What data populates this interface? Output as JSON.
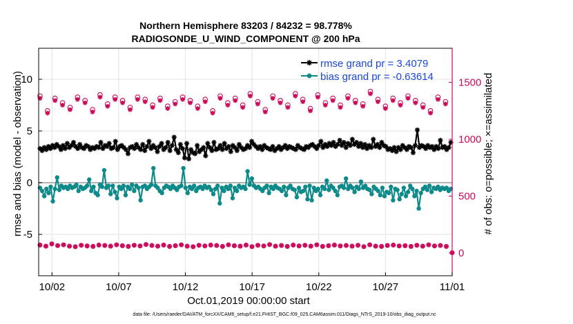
{
  "chart_data": {
    "type": "line",
    "title": "Northern Hemisphere 83203 / 84232 = 98.778%",
    "subtitle": "RADIOSONDE_U_WIND_COMPONENT @ 200 hPa",
    "xlabel": "Oct.01,2019 00:00:00 start",
    "ylabel_left": "rmse and bias (model - observation)",
    "ylabel_right": "# of obs: o=possible; ×=assimilated",
    "footnote": "data file: /Users/raeder/DAI/ATM_forcXX/CAM6_setup/f.e21.FHIST_BGC.f09_025.CAM6assim.011/Diags_NTrS_2019-10/obs_diag_output.nc",
    "x_range_days": [
      0,
      31
    ],
    "ylim_left": [
      -9,
      13
    ],
    "ylim_right": [
      -200,
      1800
    ],
    "x_ticks": [
      {
        "label": "10/02",
        "day": 1
      },
      {
        "label": "10/07",
        "day": 6
      },
      {
        "label": "10/12",
        "day": 11
      },
      {
        "label": "10/17",
        "day": 16
      },
      {
        "label": "10/22",
        "day": 21
      },
      {
        "label": "10/27",
        "day": 26
      },
      {
        "label": "11/01",
        "day": 31
      }
    ],
    "y_ticks_left": [
      {
        "label": "10",
        "value": 10
      },
      {
        "label": "5",
        "value": 5
      },
      {
        "label": "0",
        "value": 0
      },
      {
        "label": "-5",
        "value": -5
      }
    ],
    "y_ticks_right": [
      {
        "label": "1500",
        "value": 1500
      },
      {
        "label": "1000",
        "value": 1000
      },
      {
        "label": "500",
        "value": 500
      },
      {
        "label": "0",
        "value": 0
      }
    ],
    "legend": [
      {
        "label": "rmse grand pr = 3.4079",
        "color": "#000000",
        "series": "rmse"
      },
      {
        "label": "bias grand pr = -0.63614",
        "color": "#0f8a8a",
        "series": "bias"
      }
    ],
    "colors": {
      "rmse": "#000000",
      "bias": "#0f8a8a",
      "obs": "#cc0a5a",
      "legend_text": "#1a47d8",
      "zero_line": "#b4b4b4"
    },
    "series": [
      {
        "name": "rmse",
        "axis": "left",
        "values": [
          3.3,
          3.1,
          3.4,
          3.2,
          3.5,
          3.3,
          3.6,
          3.4,
          3.7,
          3.5,
          3.2,
          3.6,
          3.3,
          3.8,
          3.4,
          3.6,
          3.9,
          3.5,
          3.3,
          3.7,
          3.4,
          3.3,
          3.6,
          3.5,
          3.2,
          3.4,
          3.3,
          3.5,
          3.4,
          3.9,
          3.3,
          3.6,
          3.5,
          3.8,
          3.3,
          3.4,
          4.0,
          3.2,
          3.5,
          3.6,
          3.4,
          3.2,
          2.8,
          3.4,
          3.5,
          3.3,
          3.7,
          3.4,
          3.2,
          3.7,
          3.1,
          3.5,
          4.0,
          3.3,
          3.6,
          3.4,
          3.0,
          3.5,
          3.8,
          3.2,
          3.4,
          3.9,
          3.1,
          3.6,
          4.4,
          3.2,
          2.9,
          3.7,
          3.3,
          2.4,
          3.8,
          2.3,
          3.2,
          2.9,
          2.8,
          3.6,
          3.0,
          3.2,
          3.4,
          2.6,
          3.8,
          3.4,
          3.1,
          3.9,
          3.2,
          3.3,
          3.6,
          3.2,
          3.8,
          3.3,
          3.5,
          3.0,
          3.6,
          3.4,
          3.1,
          3.7,
          3.4,
          3.2,
          3.3,
          3.6,
          3.4,
          4.0,
          3.7,
          3.5,
          3.3,
          3.5,
          3.2,
          3.6,
          3.4,
          3.3,
          3.2,
          3.5,
          3.1,
          3.3,
          3.5,
          3.2,
          3.4,
          3.6,
          3.3,
          3.5,
          3.4,
          3.3,
          3.2,
          3.6,
          3.4,
          3.3,
          3.2,
          3.5,
          3.4,
          3.6,
          3.7,
          3.5,
          3.3,
          3.6,
          4.0,
          3.4,
          3.7,
          3.5,
          3.8,
          3.6,
          3.9,
          3.5,
          3.7,
          4.1,
          3.6,
          3.9,
          3.4,
          3.8,
          3.6,
          4.2,
          3.7,
          3.9,
          3.5,
          3.8,
          3.4,
          3.7,
          3.3,
          3.6,
          3.4,
          4.2,
          3.5,
          3.7,
          3.4,
          3.9,
          3.6,
          3.5,
          3.2,
          3.3,
          3.1,
          3.4,
          3.0,
          3.4,
          3.2,
          3.6,
          3.4,
          3.2,
          3.5,
          3.4,
          2.9,
          3.6,
          5.1,
          3.4,
          3.6,
          3.5,
          3.3,
          3.6,
          3.4,
          3.5,
          3.2,
          3.5,
          3.3,
          4.1,
          3.4,
          3.5,
          3.2,
          3.4,
          3.9
        ]
      },
      {
        "name": "bias",
        "axis": "left",
        "values": [
          -0.5,
          -0.8,
          -1.3,
          -0.6,
          -1.0,
          -0.4,
          -1.8,
          -0.6,
          0.5,
          -0.7,
          -0.3,
          -0.5,
          -0.4,
          -0.6,
          -0.3,
          -0.5,
          -0.4,
          -0.2,
          -0.8,
          -0.4,
          -0.6,
          -0.5,
          -0.3,
          0.3,
          -0.8,
          -0.4,
          -1.0,
          -1.2,
          -0.2,
          -0.4,
          1.2,
          -0.5,
          -0.3,
          -1.1,
          -0.3,
          -0.9,
          -1.5,
          -0.4,
          -0.6,
          -0.3,
          -1.2,
          -0.4,
          -0.6,
          -0.2,
          -0.8,
          -0.3,
          -0.5,
          -1.7,
          -0.4,
          -0.3,
          -0.6,
          -0.4,
          -0.2,
          1.4,
          -0.3,
          -0.5,
          -0.8,
          -1.0,
          -0.5,
          -0.3,
          -0.4,
          -0.6,
          -0.3,
          -0.5,
          -0.7,
          -0.4,
          -0.3,
          1.4,
          -0.5,
          -1.0,
          -0.4,
          -0.6,
          -0.3,
          -0.8,
          -0.5,
          -0.4,
          -0.6,
          -0.3,
          -0.5,
          -0.4,
          -0.7,
          -1.1,
          -0.6,
          -0.3,
          -2.0,
          -0.5,
          -0.8,
          -0.4,
          -0.6,
          -0.3,
          -1.5,
          -0.5,
          -0.8,
          -0.3,
          -0.5,
          -0.4,
          -0.6,
          1.1,
          -0.2,
          0.4,
          -0.3,
          -0.5,
          -0.4,
          -0.6,
          -0.8,
          -0.5,
          -0.3,
          -1.0,
          -0.4,
          -0.6,
          -0.3,
          -0.5,
          -0.6,
          -0.8,
          -0.4,
          -1.2,
          -0.5,
          -0.3,
          -0.6,
          -0.7,
          -1.4,
          -0.5,
          -0.9,
          -0.8,
          -0.4,
          -1.6,
          -0.3,
          -1.7,
          -0.5,
          -0.8,
          -0.6,
          -1.2,
          -0.4,
          -0.6,
          0.2,
          -0.7,
          -0.3,
          -0.5,
          -0.8,
          -1.2,
          -0.4,
          -0.3,
          -0.5,
          0.4,
          -0.6,
          -0.3,
          -0.5,
          -0.9,
          -0.4,
          -0.6,
          0.1,
          -0.5,
          -0.3,
          -0.6,
          -0.7,
          -1.1,
          -0.4,
          -0.6,
          -0.8,
          -1.2,
          -0.5,
          -1.3,
          -0.9,
          -1.0,
          -0.4,
          -1.7,
          -0.6,
          -0.7,
          -1.6,
          -1.1,
          -0.5,
          -1.3,
          -0.9,
          -0.3,
          -0.6,
          -1.3,
          -0.8,
          -2.5,
          -1.0,
          -0.6,
          -0.4,
          -0.7,
          -0.3,
          -0.9,
          -0.5,
          -0.6,
          -0.4,
          -0.7,
          -0.5,
          -0.6,
          -0.5,
          -0.8,
          -0.6
        ]
      },
      {
        "name": "obs_possible",
        "axis": "right",
        "values": [
          1380,
          1250,
          1360,
          1320,
          1280,
          1370,
          1340,
          1260,
          1390,
          1310,
          1370,
          1340,
          1280,
          1370,
          1350,
          1300,
          1360,
          1290,
          1330,
          1370,
          1340,
          1290,
          1350,
          1250,
          1380,
          1320,
          1360,
          1300,
          1400,
          1330,
          1260,
          1380,
          1340,
          1300,
          1400,
          1350,
          1270,
          1390,
          1320,
          1360,
          1300,
          1380,
          1340,
          1310,
          1420,
          1350,
          1290,
          1360,
          1320,
          1380,
          1340,
          1300,
          1250,
          1370,
          1330
        ]
      },
      {
        "name": "obs_assimilated",
        "axis": "right",
        "values": [
          1360,
          1230,
          1340,
          1300,
          1260,
          1350,
          1320,
          1240,
          1370,
          1290,
          1350,
          1320,
          1260,
          1350,
          1330,
          1280,
          1340,
          1270,
          1310,
          1350,
          1320,
          1270,
          1330,
          1230,
          1360,
          1300,
          1340,
          1280,
          1380,
          1310,
          1240,
          1360,
          1320,
          1280,
          1380,
          1330,
          1250,
          1370,
          1300,
          1340,
          1280,
          1360,
          1320,
          1290,
          1400,
          1330,
          1270,
          1340,
          1300,
          1360,
          1320,
          1280,
          1230,
          1350,
          1310
        ]
      },
      {
        "name": "obs_low",
        "axis": "right",
        "values": [
          70,
          60,
          80,
          65,
          72,
          60,
          55,
          68,
          62,
          58,
          70,
          66,
          60,
          72,
          64,
          58,
          68,
          62,
          75,
          66,
          60,
          70,
          58,
          64,
          72,
          60,
          55,
          68,
          62,
          70,
          66,
          58,
          72,
          64,
          60,
          70,
          56,
          68,
          62,
          74,
          60,
          66,
          58,
          70,
          62,
          68,
          60,
          72,
          58,
          64,
          70,
          62,
          66,
          60,
          68,
          56,
          72,
          60,
          58,
          66,
          70,
          62,
          64,
          58,
          68,
          60,
          72,
          62,
          66,
          58,
          2
        ]
      }
    ]
  }
}
